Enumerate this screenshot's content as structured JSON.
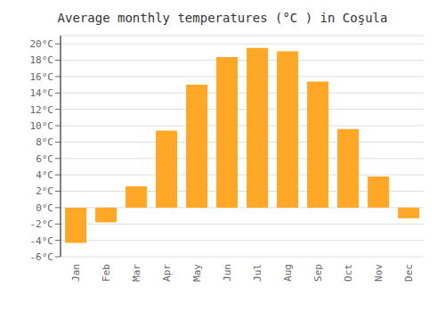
{
  "chart_data": {
    "type": "bar",
    "title": "Average monthly temperatures (°C ) in Coşula",
    "categories": [
      "Jan",
      "Feb",
      "Mar",
      "Apr",
      "May",
      "Jun",
      "Jul",
      "Aug",
      "Sep",
      "Oct",
      "Nov",
      "Dec"
    ],
    "values": [
      -4.3,
      -1.8,
      2.6,
      9.4,
      15.0,
      18.4,
      19.5,
      19.1,
      15.4,
      9.6,
      3.8,
      -1.3
    ],
    "color": "#FFA726",
    "ylim": [
      -6,
      21
    ],
    "yticks": [
      {
        "value": -6,
        "label": "-6°C"
      },
      {
        "value": -4,
        "label": "-4°C"
      },
      {
        "value": -2,
        "label": "-2°C"
      },
      {
        "value": 0,
        "label": "0°C"
      },
      {
        "value": 2,
        "label": "2°C"
      },
      {
        "value": 4,
        "label": "4°C"
      },
      {
        "value": 6,
        "label": "6°C"
      },
      {
        "value": 8,
        "label": "8°C"
      },
      {
        "value": 10,
        "label": "10°C"
      },
      {
        "value": 12,
        "label": "12°C"
      },
      {
        "value": 14,
        "label": "14°C"
      },
      {
        "value": 16,
        "label": "16°C"
      },
      {
        "value": 18,
        "label": "18°C"
      },
      {
        "value": 20,
        "label": "20°C"
      }
    ],
    "grid": true
  }
}
